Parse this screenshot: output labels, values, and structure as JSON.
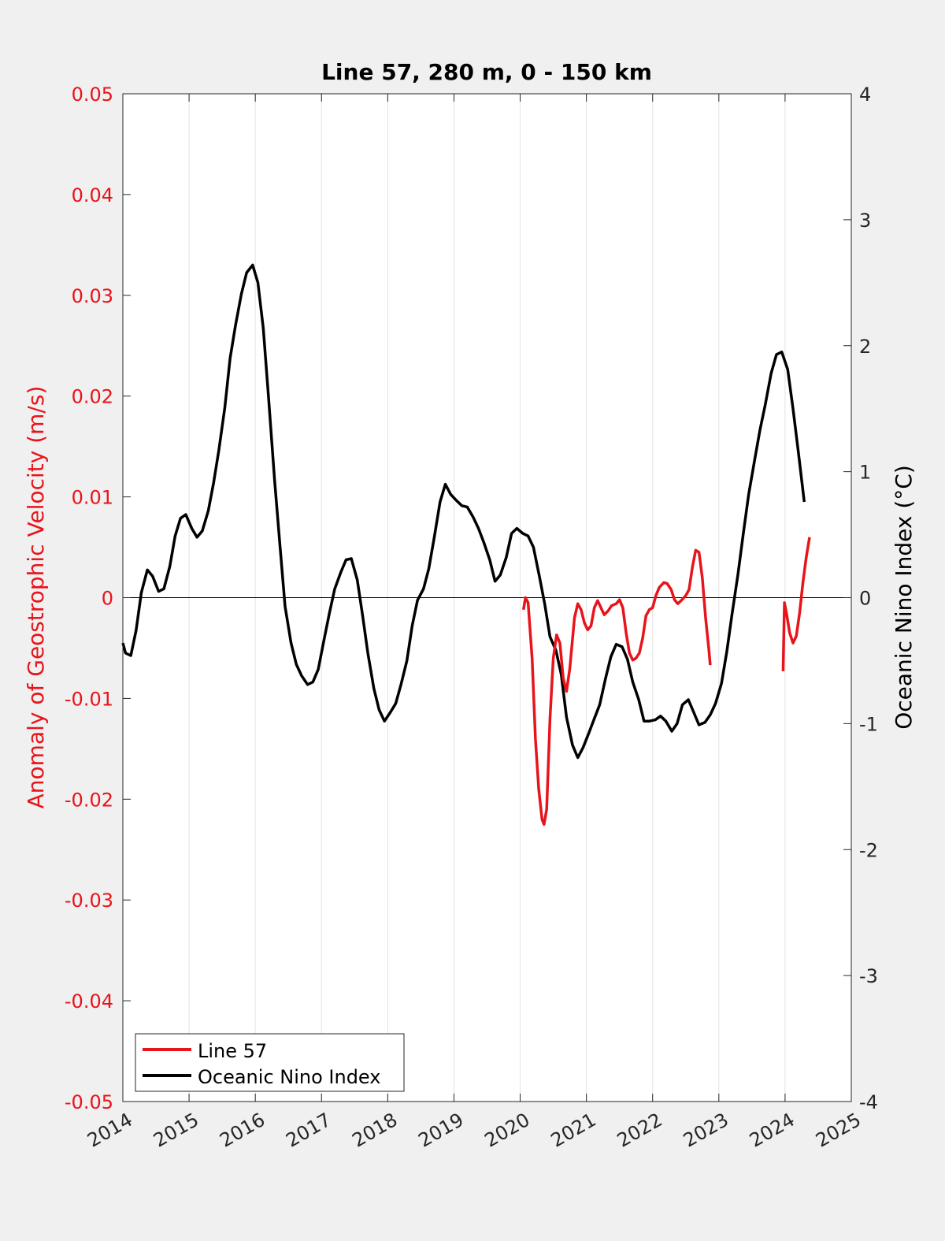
{
  "chart_data": {
    "type": "line",
    "title": "Line 57, 280 m, 0 - 150 km",
    "xlabel": "",
    "ylabel_left": "Anomaly of Geostrophic Velocity (m/s)",
    "ylabel_right": "Oceanic Nino Index (°C)",
    "xlim": [
      2014,
      2025
    ],
    "ylim_left": [
      -0.05,
      0.05
    ],
    "ylim_right": [
      -4,
      4
    ],
    "x_ticks": [
      "2014",
      "2015",
      "2016",
      "2017",
      "2018",
      "2019",
      "2020",
      "2021",
      "2022",
      "2023",
      "2024",
      "2025"
    ],
    "y_ticks_left": [
      "0.05",
      "0.04",
      "0.03",
      "0.02",
      "0.01",
      "0",
      "-0.01",
      "-0.02",
      "-0.03",
      "-0.04",
      "-0.05"
    ],
    "y_ticks_right": [
      "4",
      "3",
      "2",
      "1",
      "0",
      "-1",
      "-2",
      "-3",
      "-4"
    ],
    "grid": "vertical",
    "legend_position": "bottom-left",
    "zero_line": true,
    "colors": {
      "line57": "#e8141b",
      "oni": "#000000",
      "left_axis": "#e8141b",
      "right_axis": "#000000"
    },
    "series": [
      {
        "name": "Line 57",
        "axis": "left",
        "segments": [
          [
            [
              2020.05,
              -0.0012
            ],
            [
              2020.08,
              0
            ],
            [
              2020.12,
              -0.0005
            ],
            [
              2020.18,
              -0.006
            ],
            [
              2020.23,
              -0.014
            ],
            [
              2020.28,
              -0.019
            ],
            [
              2020.33,
              -0.022
            ],
            [
              2020.36,
              -0.0225
            ],
            [
              2020.4,
              -0.021
            ],
            [
              2020.45,
              -0.012
            ],
            [
              2020.5,
              -0.006
            ],
            [
              2020.55,
              -0.0037
            ],
            [
              2020.6,
              -0.0045
            ],
            [
              2020.65,
              -0.008
            ],
            [
              2020.7,
              -0.0093
            ],
            [
              2020.75,
              -0.007
            ],
            [
              2020.82,
              -0.002
            ],
            [
              2020.87,
              -0.0006
            ],
            [
              2020.92,
              -0.0012
            ],
            [
              2020.97,
              -0.0025
            ],
            [
              2021.02,
              -0.0032
            ],
            [
              2021.07,
              -0.0028
            ],
            [
              2021.12,
              -0.001
            ],
            [
              2021.17,
              -0.0003
            ],
            [
              2021.22,
              -0.001
            ],
            [
              2021.27,
              -0.0017
            ],
            [
              2021.33,
              -0.0013
            ],
            [
              2021.38,
              -0.0008
            ],
            [
              2021.45,
              -0.0006
            ],
            [
              2021.5,
              -0.0002
            ],
            [
              2021.55,
              -0.001
            ],
            [
              2021.6,
              -0.0035
            ],
            [
              2021.65,
              -0.0055
            ],
            [
              2021.7,
              -0.0062
            ],
            [
              2021.75,
              -0.006
            ],
            [
              2021.8,
              -0.0055
            ],
            [
              2021.85,
              -0.004
            ],
            [
              2021.9,
              -0.0018
            ],
            [
              2021.95,
              -0.0012
            ],
            [
              2022.0,
              -0.001
            ],
            [
              2022.05,
              0.0002
            ],
            [
              2022.1,
              0.001
            ],
            [
              2022.17,
              0.0015
            ],
            [
              2022.22,
              0.0014
            ],
            [
              2022.28,
              0.0008
            ],
            [
              2022.33,
              -0.0002
            ],
            [
              2022.38,
              -0.0006
            ],
            [
              2022.43,
              -0.0003
            ],
            [
              2022.5,
              0.0002
            ],
            [
              2022.55,
              0.0008
            ],
            [
              2022.6,
              0.003
            ],
            [
              2022.65,
              0.0047
            ],
            [
              2022.7,
              0.0045
            ],
            [
              2022.75,
              0.002
            ],
            [
              2022.8,
              -0.002
            ],
            [
              2022.85,
              -0.0052
            ],
            [
              2022.87,
              -0.0067
            ]
          ],
          [
            [
              2023.97,
              -0.0073
            ],
            [
              2023.99,
              -0.0005
            ],
            [
              2024.02,
              -0.0015
            ],
            [
              2024.07,
              -0.0035
            ],
            [
              2024.12,
              -0.0045
            ],
            [
              2024.17,
              -0.0038
            ],
            [
              2024.22,
              -0.0015
            ],
            [
              2024.27,
              0.0015
            ],
            [
              2024.32,
              0.004
            ],
            [
              2024.37,
              0.006
            ]
          ]
        ]
      },
      {
        "name": "Oceanic Nino Index",
        "axis": "right",
        "points": [
          [
            2014.0,
            -0.36
          ],
          [
            2014.04,
            -0.44
          ],
          [
            2014.12,
            -0.46
          ],
          [
            2014.2,
            -0.26
          ],
          [
            2014.28,
            0.04
          ],
          [
            2014.37,
            0.22
          ],
          [
            2014.45,
            0.17
          ],
          [
            2014.54,
            0.05
          ],
          [
            2014.62,
            0.07
          ],
          [
            2014.71,
            0.25
          ],
          [
            2014.79,
            0.49
          ],
          [
            2014.87,
            0.63
          ],
          [
            2014.95,
            0.66
          ],
          [
            2015.04,
            0.55
          ],
          [
            2015.12,
            0.48
          ],
          [
            2015.2,
            0.53
          ],
          [
            2015.29,
            0.69
          ],
          [
            2015.37,
            0.91
          ],
          [
            2015.45,
            1.17
          ],
          [
            2015.54,
            1.51
          ],
          [
            2015.62,
            1.9
          ],
          [
            2015.7,
            2.16
          ],
          [
            2015.79,
            2.41
          ],
          [
            2015.87,
            2.58
          ],
          [
            2015.96,
            2.64
          ],
          [
            2016.04,
            2.5
          ],
          [
            2016.12,
            2.14
          ],
          [
            2016.2,
            1.59
          ],
          [
            2016.29,
            0.94
          ],
          [
            2016.37,
            0.43
          ],
          [
            2016.45,
            -0.07
          ],
          [
            2016.54,
            -0.36
          ],
          [
            2016.62,
            -0.53
          ],
          [
            2016.7,
            -0.62
          ],
          [
            2016.79,
            -0.69
          ],
          [
            2016.87,
            -0.67
          ],
          [
            2016.95,
            -0.57
          ],
          [
            2017.04,
            -0.33
          ],
          [
            2017.12,
            -0.12
          ],
          [
            2017.2,
            0.07
          ],
          [
            2017.29,
            0.2
          ],
          [
            2017.37,
            0.3
          ],
          [
            2017.45,
            0.31
          ],
          [
            2017.54,
            0.14
          ],
          [
            2017.62,
            -0.14
          ],
          [
            2017.7,
            -0.44
          ],
          [
            2017.79,
            -0.72
          ],
          [
            2017.87,
            -0.89
          ],
          [
            2017.95,
            -0.98
          ],
          [
            2018.04,
            -0.91
          ],
          [
            2018.12,
            -0.84
          ],
          [
            2018.2,
            -0.69
          ],
          [
            2018.29,
            -0.5
          ],
          [
            2018.37,
            -0.22
          ],
          [
            2018.45,
            -0.02
          ],
          [
            2018.54,
            0.07
          ],
          [
            2018.62,
            0.23
          ],
          [
            2018.7,
            0.47
          ],
          [
            2018.79,
            0.76
          ],
          [
            2018.87,
            0.9
          ],
          [
            2018.95,
            0.82
          ],
          [
            2019.04,
            0.77
          ],
          [
            2019.12,
            0.73
          ],
          [
            2019.2,
            0.72
          ],
          [
            2019.29,
            0.64
          ],
          [
            2019.37,
            0.55
          ],
          [
            2019.45,
            0.44
          ],
          [
            2019.54,
            0.3
          ],
          [
            2019.62,
            0.13
          ],
          [
            2019.7,
            0.18
          ],
          [
            2019.79,
            0.32
          ],
          [
            2019.87,
            0.51
          ],
          [
            2019.95,
            0.55
          ],
          [
            2020.04,
            0.51
          ],
          [
            2020.12,
            0.49
          ],
          [
            2020.2,
            0.4
          ],
          [
            2020.29,
            0.17
          ],
          [
            2020.37,
            -0.05
          ],
          [
            2020.45,
            -0.31
          ],
          [
            2020.54,
            -0.42
          ],
          [
            2020.62,
            -0.61
          ],
          [
            2020.7,
            -0.95
          ],
          [
            2020.79,
            -1.17
          ],
          [
            2020.87,
            -1.27
          ],
          [
            2020.95,
            -1.19
          ],
          [
            2021.04,
            -1.07
          ],
          [
            2021.12,
            -0.96
          ],
          [
            2021.2,
            -0.85
          ],
          [
            2021.29,
            -0.64
          ],
          [
            2021.37,
            -0.47
          ],
          [
            2021.45,
            -0.37
          ],
          [
            2021.54,
            -0.39
          ],
          [
            2021.62,
            -0.49
          ],
          [
            2021.7,
            -0.67
          ],
          [
            2021.79,
            -0.81
          ],
          [
            2021.87,
            -0.98
          ],
          [
            2021.95,
            -0.98
          ],
          [
            2022.04,
            -0.97
          ],
          [
            2022.12,
            -0.94
          ],
          [
            2022.2,
            -0.98
          ],
          [
            2022.29,
            -1.06
          ],
          [
            2022.37,
            -1.0
          ],
          [
            2022.45,
            -0.85
          ],
          [
            2022.54,
            -0.81
          ],
          [
            2022.62,
            -0.91
          ],
          [
            2022.7,
            -1.01
          ],
          [
            2022.79,
            -0.99
          ],
          [
            2022.87,
            -0.93
          ],
          [
            2022.95,
            -0.84
          ],
          [
            2023.04,
            -0.68
          ],
          [
            2023.12,
            -0.43
          ],
          [
            2023.2,
            -0.13
          ],
          [
            2023.29,
            0.19
          ],
          [
            2023.37,
            0.51
          ],
          [
            2023.45,
            0.82
          ],
          [
            2023.54,
            1.09
          ],
          [
            2023.62,
            1.33
          ],
          [
            2023.7,
            1.53
          ],
          [
            2023.79,
            1.78
          ],
          [
            2023.87,
            1.93
          ],
          [
            2023.95,
            1.95
          ],
          [
            2024.04,
            1.81
          ],
          [
            2024.12,
            1.5
          ],
          [
            2024.2,
            1.16
          ],
          [
            2024.29,
            0.76
          ]
        ]
      }
    ]
  }
}
